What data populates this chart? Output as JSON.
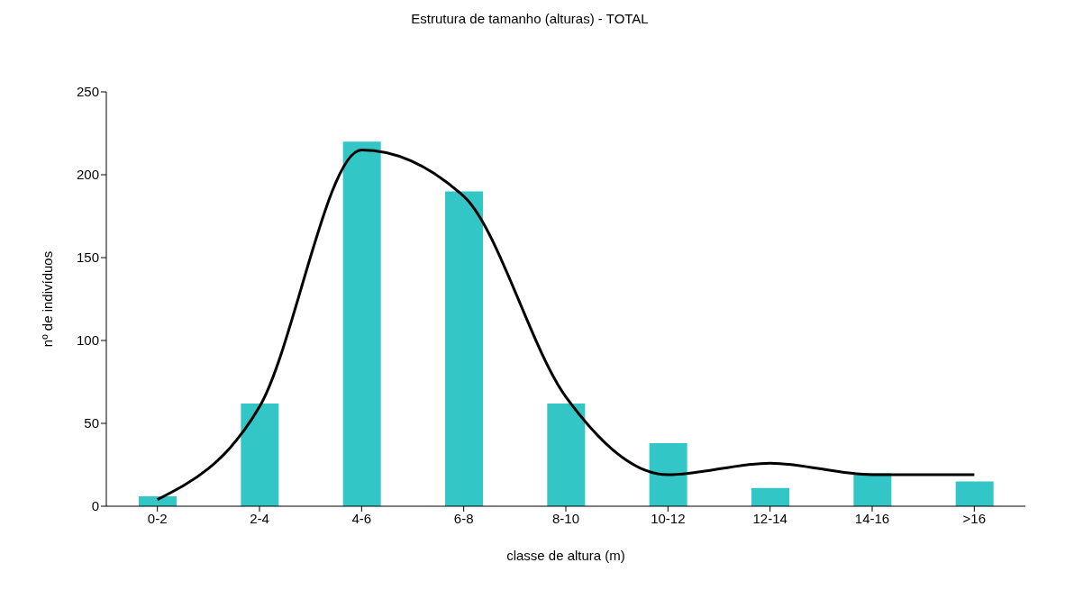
{
  "chart_data": {
    "type": "bar",
    "title": "Estrutura de tamanho (alturas) - TOTAL",
    "xlabel": "classe de altura (m)",
    "ylabel": "nº de indivíduos",
    "categories": [
      "0-2",
      "2-4",
      "4-6",
      "6-8",
      "8-10",
      "10-12",
      "12-14",
      "14-16",
      ">16"
    ],
    "series": [
      {
        "color": "#33c6c6",
        "values": [
          6,
          62,
          220,
          190,
          62,
          38,
          11,
          20,
          15
        ]
      },
      {
        "type": "line",
        "color": "#000000",
        "values": [
          4,
          60,
          215,
          187,
          66,
          19,
          26,
          19,
          19
        ]
      }
    ],
    "ylim": [
      0,
      250
    ],
    "yticks": [
      0,
      50,
      100,
      150,
      200,
      250
    ],
    "grid": false,
    "legend": false
  }
}
